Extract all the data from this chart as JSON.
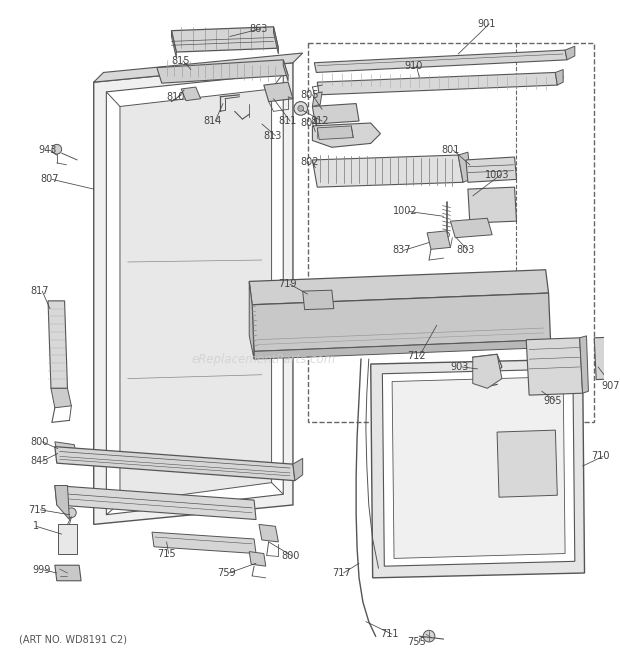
{
  "bg_color": "#ffffff",
  "lc": "#555555",
  "dc": "#666666",
  "tc": "#444444",
  "art_no": "(ART NO. WD8191 C2)",
  "watermark": "eReplacementParts.com",
  "fig_w": 6.2,
  "fig_h": 6.61,
  "dpi": 100
}
